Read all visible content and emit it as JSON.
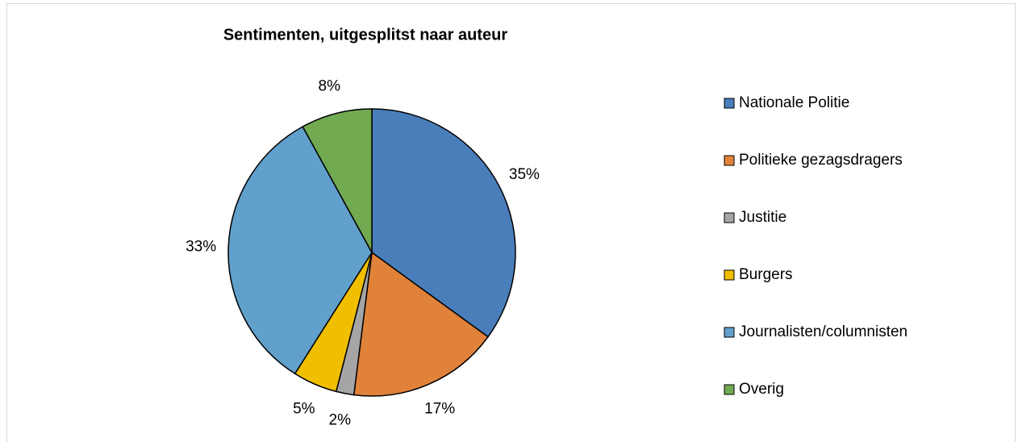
{
  "chart_data": {
    "type": "pie",
    "title": "Sentimenten, uitgesplitst naar auteur",
    "categories": [
      "Nationale Politie",
      "Politieke gezagsdragers",
      "Justitie",
      "Burgers",
      "Journalisten/columnisten",
      "Overig"
    ],
    "values": [
      35,
      17,
      2,
      5,
      33,
      8
    ],
    "value_labels": [
      "35%",
      "17%",
      "2%",
      "5%",
      "33%",
      "8%"
    ],
    "colors": [
      "#4a7ebb",
      "#e0823a",
      "#a5a5a5",
      "#f0bf00",
      "#62a0cc",
      "#72aa52"
    ],
    "legend": "right"
  }
}
